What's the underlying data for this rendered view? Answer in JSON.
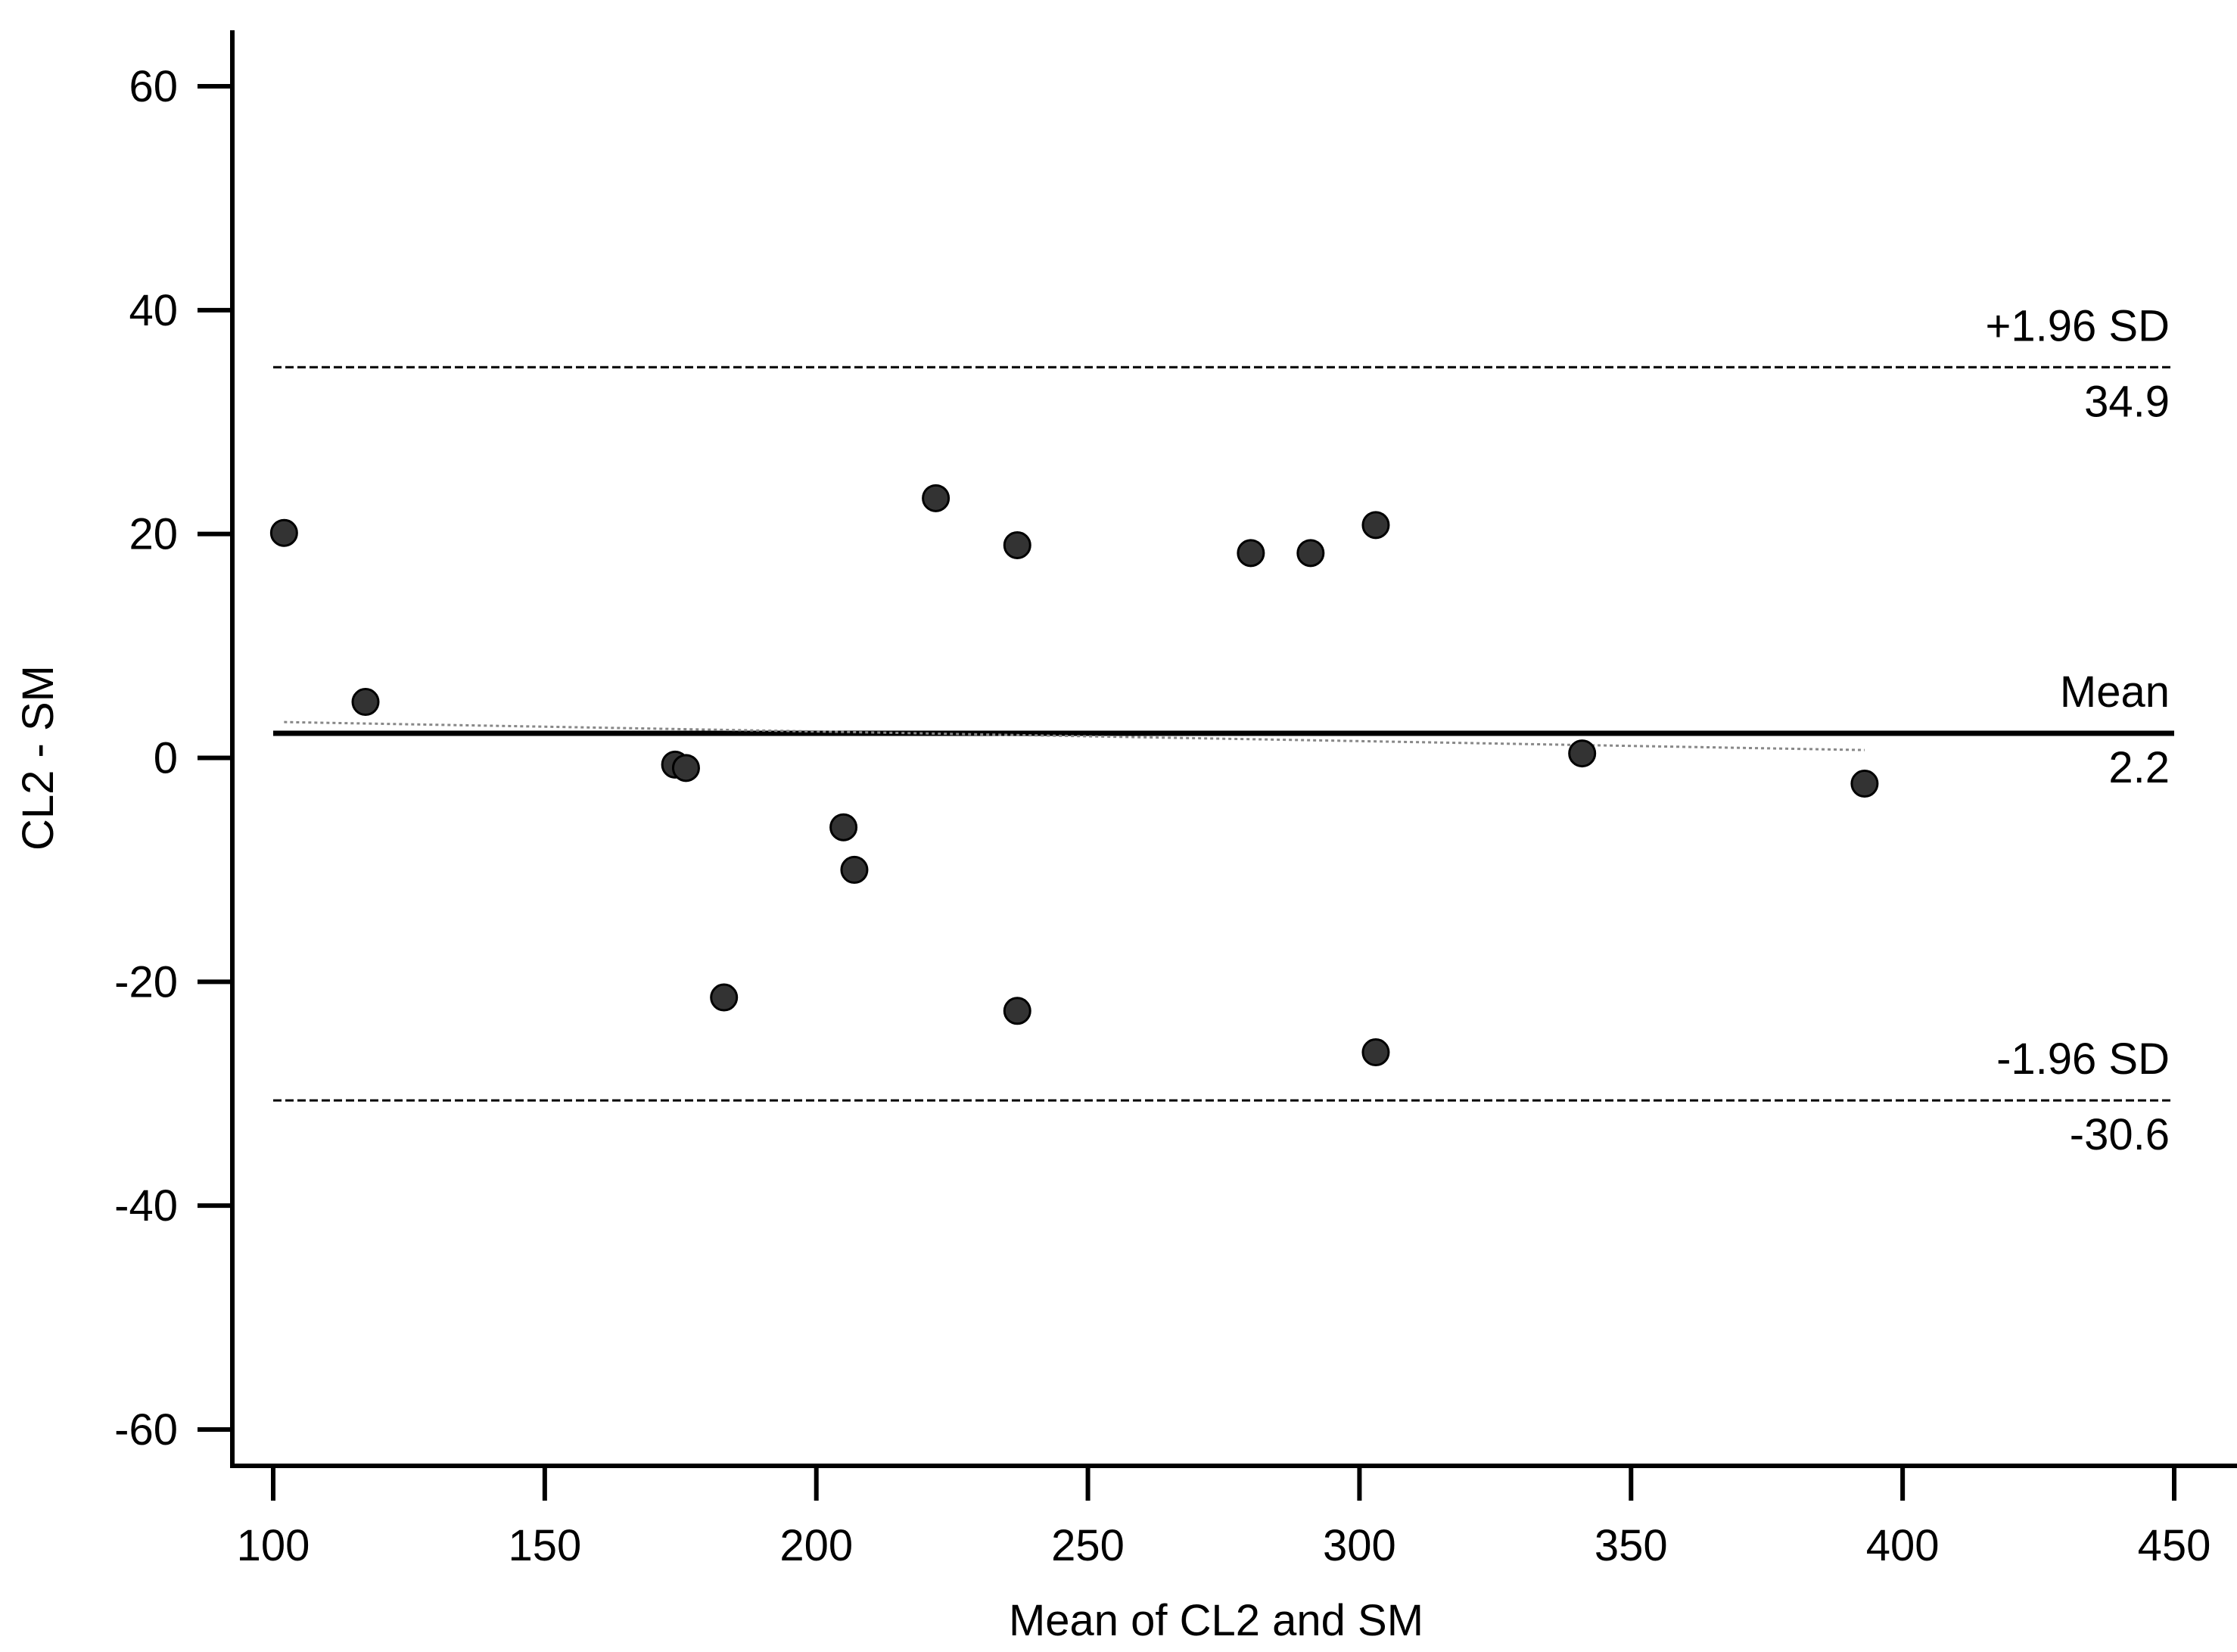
{
  "chart_data": {
    "type": "scatter",
    "xlabel": "Mean of CL2 and SM",
    "ylabel": "CL2 - SM",
    "xlim": [
      92,
      450
    ],
    "ylim": [
      -64,
      65
    ],
    "xticks": [
      100,
      150,
      200,
      250,
      300,
      350,
      400,
      450
    ],
    "yticks": [
      -60,
      -40,
      -20,
      0,
      20,
      40,
      60
    ],
    "grid": false,
    "points": [
      {
        "x": 102,
        "y": 20.1
      },
      {
        "x": 117,
        "y": 5.0
      },
      {
        "x": 174,
        "y": -0.6
      },
      {
        "x": 176,
        "y": -0.9
      },
      {
        "x": 183,
        "y": -21.4
      },
      {
        "x": 205,
        "y": -6.2
      },
      {
        "x": 207,
        "y": -10.0
      },
      {
        "x": 222,
        "y": 23.2
      },
      {
        "x": 237,
        "y": 19.0
      },
      {
        "x": 237,
        "y": -22.6
      },
      {
        "x": 280,
        "y": 18.3
      },
      {
        "x": 291,
        "y": 18.3
      },
      {
        "x": 303,
        "y": 20.8
      },
      {
        "x": 303,
        "y": -26.3
      },
      {
        "x": 341,
        "y": 0.4
      },
      {
        "x": 393,
        "y": -2.3
      }
    ],
    "reference_lines": [
      {
        "name": "+1.96 SD",
        "label": "+1.96 SD",
        "value": 34.9,
        "value_label": "34.9",
        "style": "dashed"
      },
      {
        "name": "mean",
        "label": "Mean",
        "value": 2.2,
        "value_label": "2.2",
        "style": "solid"
      },
      {
        "name": "-1.96 SD",
        "label": "-1.96 SD",
        "value": -30.6,
        "value_label": "-30.6",
        "style": "dashed"
      }
    ],
    "trend_line": {
      "x": [
        102,
        393
      ],
      "y": [
        3.2,
        0.7
      ]
    }
  }
}
